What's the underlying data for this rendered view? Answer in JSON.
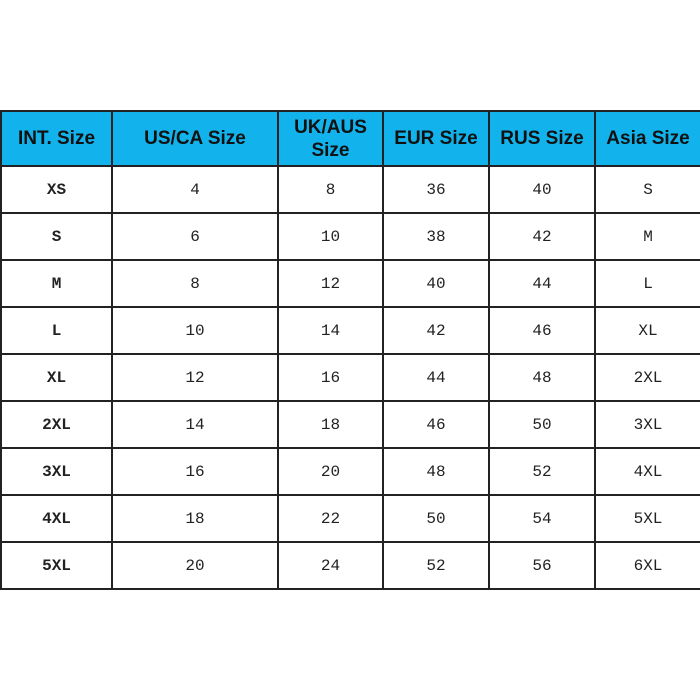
{
  "chart_data": {
    "type": "table",
    "columns": [
      "INT. Size",
      "US/CA Size",
      "UK/AUS Size",
      "EUR  Size",
      "RUS  Size",
      "Asia Size"
    ],
    "rows": [
      [
        "XS",
        "4",
        "8",
        "36",
        "40",
        "S"
      ],
      [
        "S",
        "6",
        "10",
        "38",
        "42",
        "M"
      ],
      [
        "M",
        "8",
        "12",
        "40",
        "44",
        "L"
      ],
      [
        "L",
        "10",
        "14",
        "42",
        "46",
        "XL"
      ],
      [
        "XL",
        "12",
        "16",
        "44",
        "48",
        "2XL"
      ],
      [
        "2XL",
        "14",
        "18",
        "46",
        "50",
        "3XL"
      ],
      [
        "3XL",
        "16",
        "20",
        "48",
        "52",
        "4XL"
      ],
      [
        "4XL",
        "18",
        "22",
        "50",
        "54",
        "5XL"
      ],
      [
        "5XL",
        "20",
        "24",
        "52",
        "56",
        "6XL"
      ]
    ],
    "header_color": "#12b3ec"
  }
}
